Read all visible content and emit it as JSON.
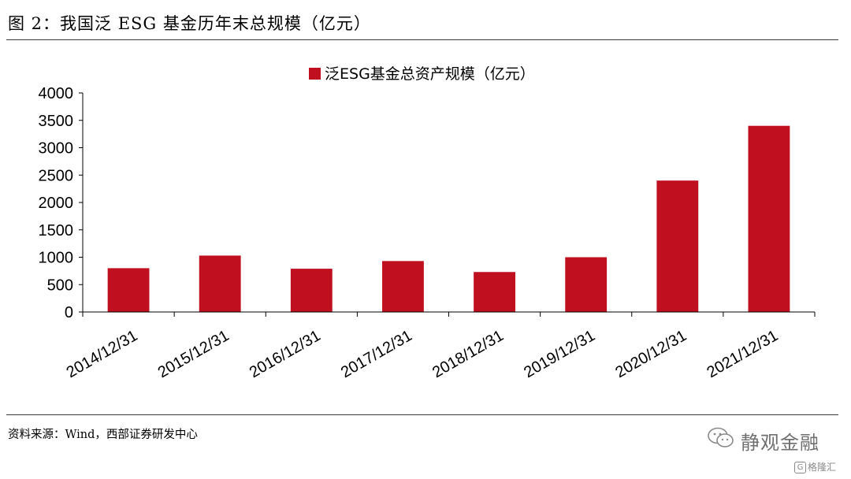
{
  "figure": {
    "title": "图 2：我国泛 ESG 基金历年末总规模（亿元）",
    "source": "资料来源：Wind，西部证券研发中心"
  },
  "watermark": {
    "text": "静观金融",
    "logo_text": "格隆汇",
    "logo_glyph": "G",
    "icon": "wechat-icon"
  },
  "colors": {
    "bar": "#C00F1E",
    "axis": "#000000"
  },
  "chart_data": {
    "type": "bar",
    "categories": [
      "2014/12/31",
      "2015/12/31",
      "2016/12/31",
      "2017/12/31",
      "2018/12/31",
      "2019/12/31",
      "2020/12/31",
      "2021/12/31"
    ],
    "series": [
      {
        "name": "泛ESG基金总资产规模（亿元）",
        "values": [
          800,
          1030,
          790,
          930,
          730,
          1000,
          2400,
          3400
        ]
      }
    ],
    "y_ticks": [
      0,
      500,
      1000,
      1500,
      2000,
      2500,
      3000,
      3500,
      4000
    ],
    "ylim": [
      0,
      4000
    ],
    "legend_position": "top-center",
    "grid": false
  }
}
